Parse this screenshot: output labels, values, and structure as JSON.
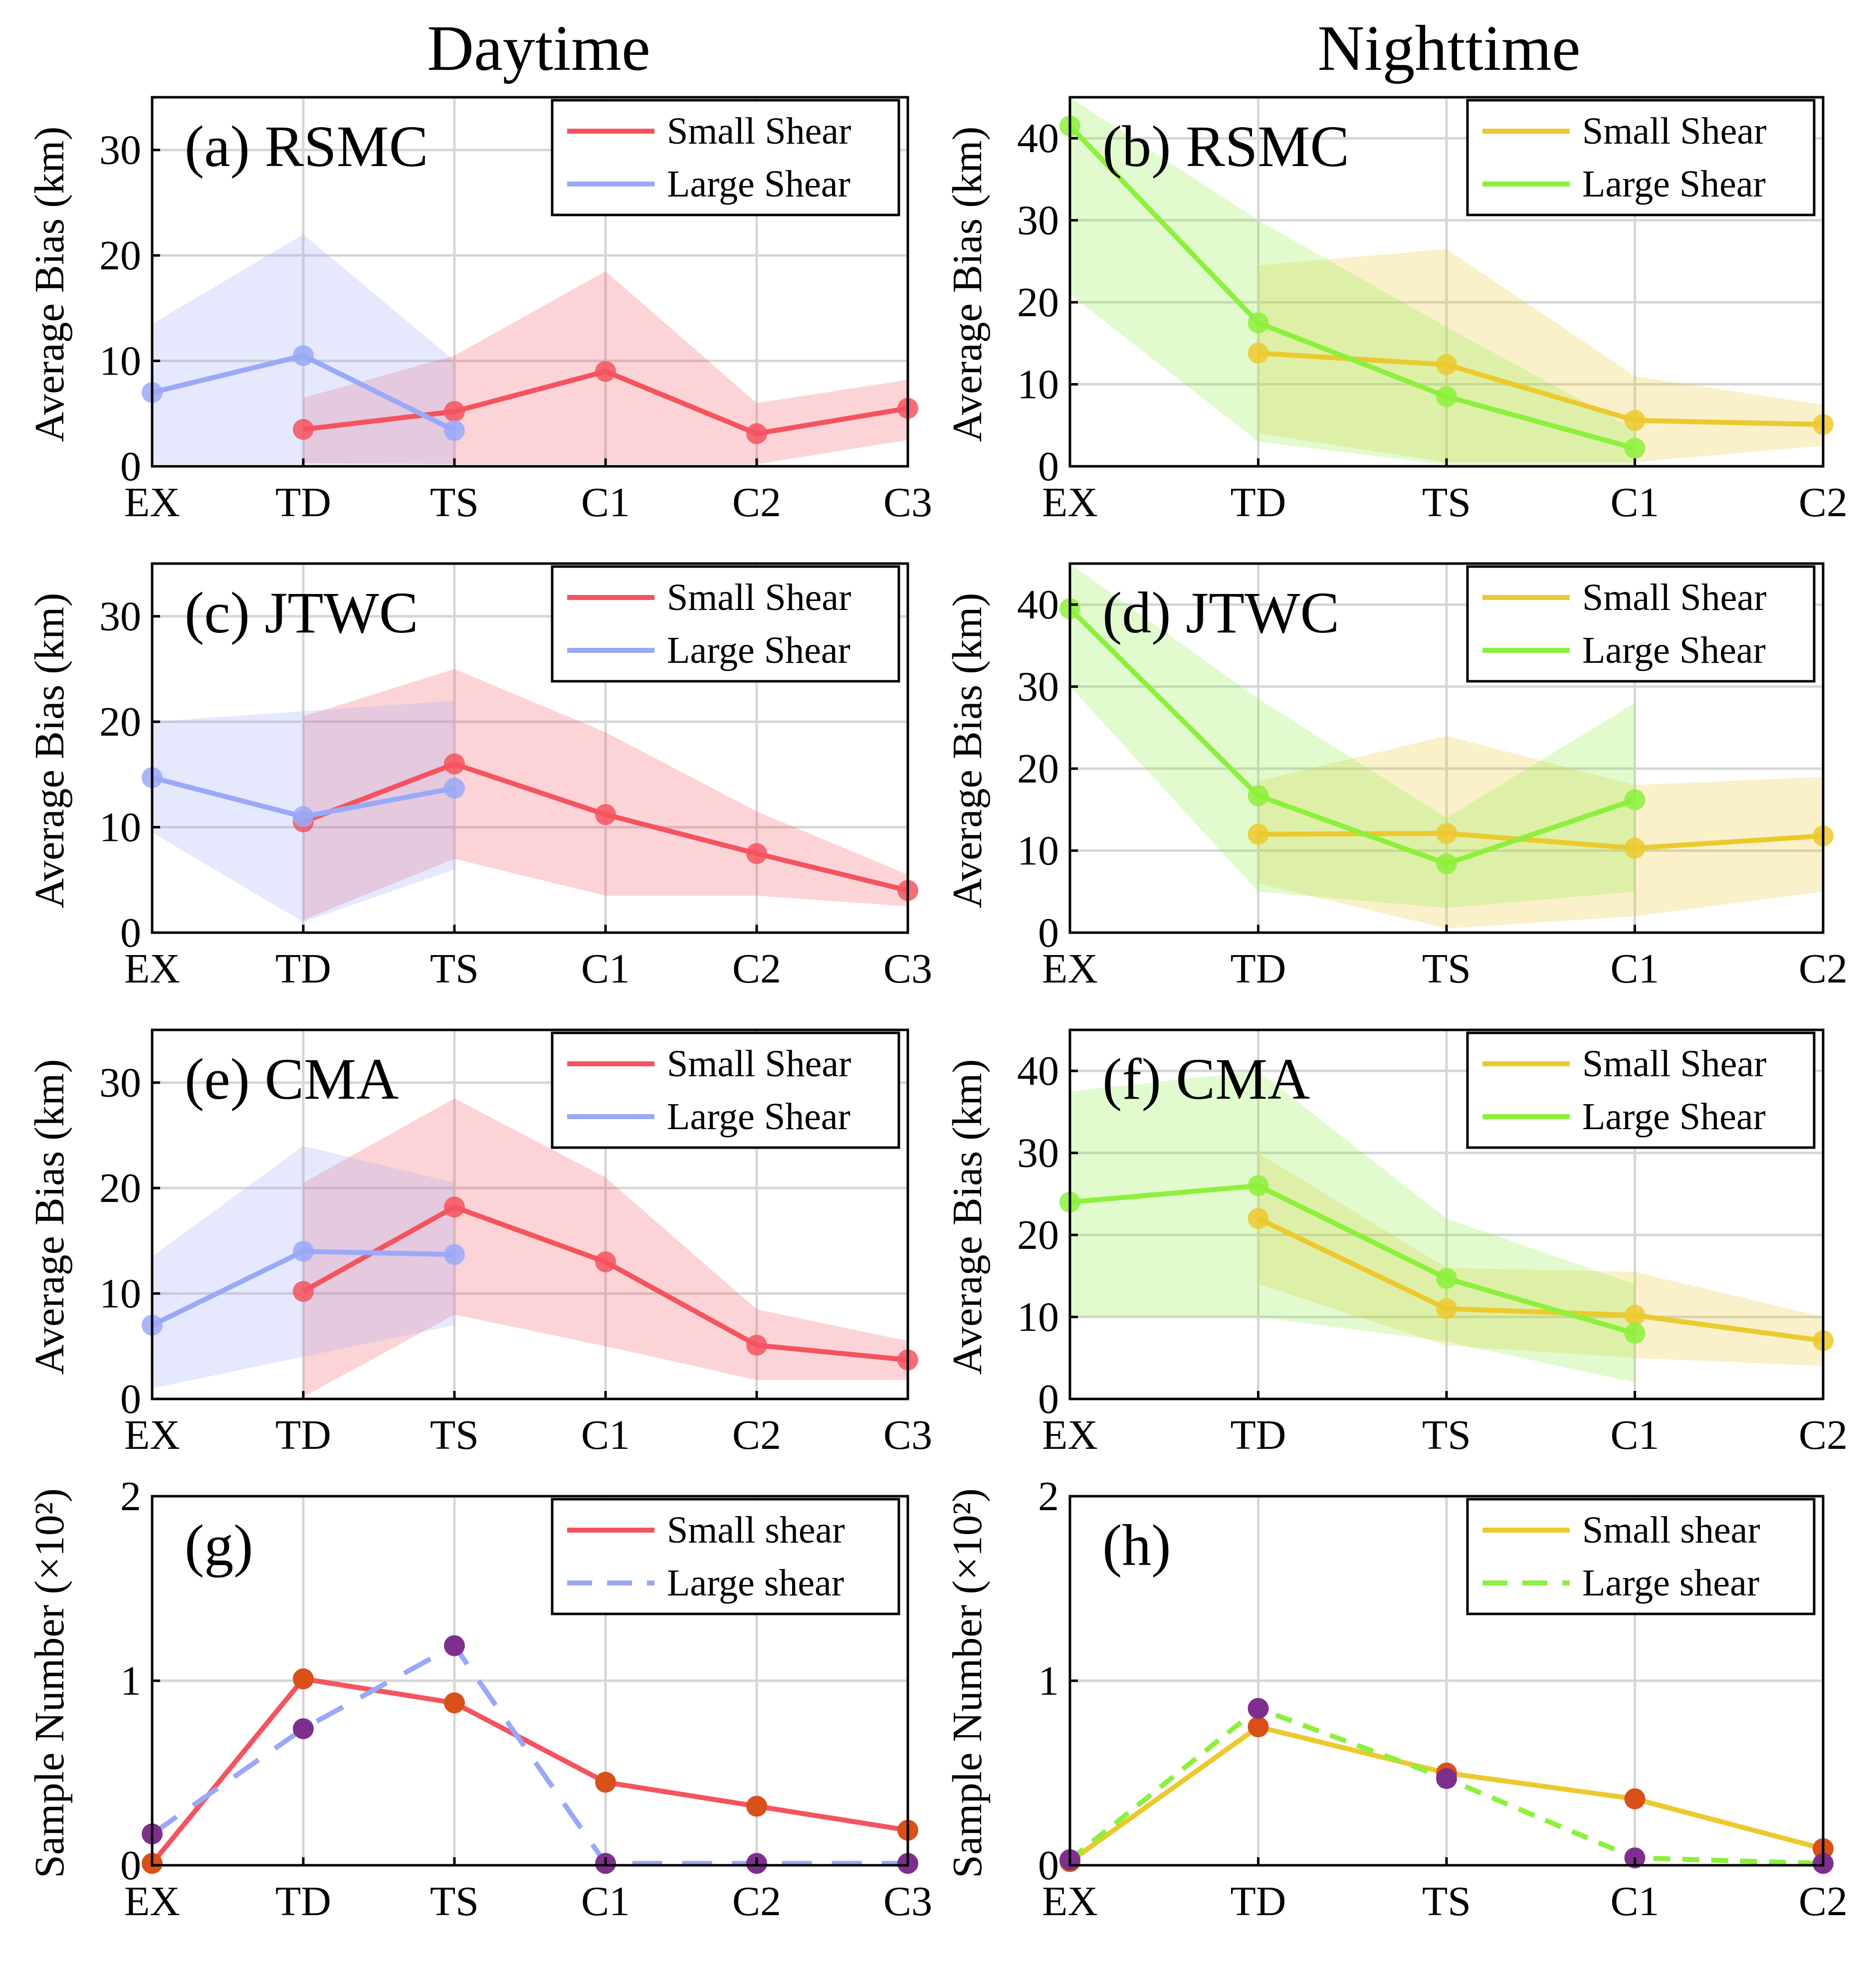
{
  "column_titles": {
    "day": "Daytime",
    "night": "Nighttime"
  },
  "colors": {
    "day_small": "#f4545e",
    "day_large": "#9aa8f8",
    "night_small": "#ecc92e",
    "night_large": "#8cf03c",
    "marker_small": "#d95019",
    "marker_large": "#7e2f8e"
  },
  "chart_data": [
    {
      "id": "a",
      "type": "line",
      "title": "(a) RSMC",
      "column": "day",
      "ylabel": "Average Bias (km)",
      "xlabel": "",
      "categories": [
        "EX",
        "TD",
        "TS",
        "C1",
        "C2",
        "C3"
      ],
      "ylim": [
        0,
        35
      ],
      "yticks": [
        0,
        10,
        20,
        30
      ],
      "grid": true,
      "legend": "top-right",
      "series": [
        {
          "name": "Small Shear",
          "values": [
            null,
            3.5,
            5.2,
            9,
            3.1,
            5.5
          ],
          "lower": [
            null,
            0.3,
            0.2,
            0.2,
            0.2,
            2.5
          ],
          "upper": [
            null,
            6.5,
            10.5,
            18.5,
            6,
            8.2
          ]
        },
        {
          "name": "Large Shear",
          "values": [
            7,
            10.5,
            3.4,
            null,
            null,
            null
          ],
          "lower": [
            0.2,
            0.2,
            0.2,
            null,
            null,
            null
          ],
          "upper": [
            13.5,
            22,
            10,
            null,
            null,
            null
          ]
        }
      ]
    },
    {
      "id": "b",
      "type": "line",
      "title": "(b) RSMC",
      "column": "night",
      "ylabel": "Average Bias (km)",
      "xlabel": "",
      "categories": [
        "EX",
        "TD",
        "TS",
        "C1",
        "C2"
      ],
      "ylim": [
        0,
        45
      ],
      "yticks": [
        0,
        10,
        20,
        30,
        40
      ],
      "grid": true,
      "legend": "top-right",
      "series": [
        {
          "name": "Small Shear",
          "values": [
            null,
            13.8,
            12.4,
            5.6,
            5.1
          ],
          "lower": [
            null,
            4,
            0.5,
            0.5,
            2.5
          ],
          "upper": [
            null,
            24.5,
            26.5,
            11,
            7.5
          ]
        },
        {
          "name": "Large Shear",
          "values": [
            41.5,
            17.5,
            8.5,
            2.2,
            null
          ],
          "lower": [
            21,
            3,
            0.2,
            0.2,
            null
          ],
          "upper": [
            45,
            30,
            17,
            4.5,
            null
          ]
        }
      ]
    },
    {
      "id": "c",
      "type": "line",
      "title": "(c) JTWC",
      "column": "day",
      "ylabel": "Average Bias (km)",
      "xlabel": "",
      "categories": [
        "EX",
        "TD",
        "TS",
        "C1",
        "C2",
        "C3"
      ],
      "ylim": [
        0,
        35
      ],
      "yticks": [
        0,
        10,
        20,
        30
      ],
      "grid": true,
      "legend": "top-right",
      "series": [
        {
          "name": "Small Shear",
          "values": [
            null,
            10.5,
            16,
            11.2,
            7.5,
            4
          ],
          "lower": [
            null,
            1.2,
            7,
            3.5,
            3.5,
            2.5
          ],
          "upper": [
            null,
            20.5,
            25,
            19,
            11.5,
            5.5
          ]
        },
        {
          "name": "Large Shear",
          "values": [
            14.7,
            11,
            13.7,
            null,
            null,
            null
          ],
          "lower": [
            9.5,
            1,
            6,
            null,
            null,
            null
          ],
          "upper": [
            20,
            21,
            22,
            null,
            null,
            null
          ]
        }
      ]
    },
    {
      "id": "d",
      "type": "line",
      "title": "(d) JTWC",
      "column": "night",
      "ylabel": "Average Bias (km)",
      "xlabel": "",
      "categories": [
        "EX",
        "TD",
        "TS",
        "C1",
        "C2"
      ],
      "ylim": [
        0,
        45
      ],
      "yticks": [
        0,
        10,
        20,
        30,
        40
      ],
      "grid": true,
      "legend": "top-right",
      "series": [
        {
          "name": "Small Shear",
          "values": [
            null,
            12,
            12.1,
            10.3,
            11.8
          ],
          "lower": [
            null,
            6,
            0.5,
            2,
            5
          ],
          "upper": [
            null,
            18.5,
            24,
            18,
            19
          ]
        },
        {
          "name": "Large Shear",
          "values": [
            39.5,
            16.7,
            8.4,
            16.2,
            null
          ],
          "lower": [
            30,
            5,
            3,
            5,
            null
          ],
          "upper": [
            45,
            28.5,
            14,
            28,
            null
          ]
        }
      ]
    },
    {
      "id": "e",
      "type": "line",
      "title": "(e) CMA",
      "column": "day",
      "ylabel": "Average Bias (km)",
      "xlabel": "",
      "categories": [
        "EX",
        "TD",
        "TS",
        "C1",
        "C2",
        "C3"
      ],
      "ylim": [
        0,
        35
      ],
      "yticks": [
        0,
        10,
        20,
        30
      ],
      "grid": true,
      "legend": "top-right",
      "series": [
        {
          "name": "Small Shear",
          "values": [
            null,
            10.2,
            18.2,
            13,
            5.1,
            3.7
          ],
          "lower": [
            null,
            0.2,
            8,
            5,
            1.8,
            1.8
          ],
          "upper": [
            null,
            20.5,
            28.5,
            21,
            8.5,
            5.5
          ]
        },
        {
          "name": "Large Shear",
          "values": [
            7,
            14,
            13.7,
            null,
            null,
            null
          ],
          "lower": [
            1,
            4,
            7,
            null,
            null,
            null
          ],
          "upper": [
            13.5,
            24,
            20.5,
            null,
            null,
            null
          ]
        }
      ]
    },
    {
      "id": "f",
      "type": "line",
      "title": "(f) CMA",
      "column": "night",
      "ylabel": "Average Bias (km)",
      "xlabel": "",
      "categories": [
        "EX",
        "TD",
        "TS",
        "C1",
        "C2"
      ],
      "ylim": [
        0,
        45
      ],
      "yticks": [
        0,
        10,
        20,
        30,
        40
      ],
      "grid": true,
      "legend": "top-right",
      "series": [
        {
          "name": "Small Shear",
          "values": [
            null,
            22,
            11,
            10.2,
            7.1
          ],
          "lower": [
            null,
            14,
            6.5,
            5,
            4
          ],
          "upper": [
            null,
            30,
            16,
            15.5,
            10
          ]
        },
        {
          "name": "Large Shear",
          "values": [
            24,
            26,
            14.7,
            8,
            null
          ],
          "lower": [
            10,
            10,
            7,
            2,
            null
          ],
          "upper": [
            37.5,
            40,
            22,
            14,
            null
          ]
        }
      ]
    },
    {
      "id": "g",
      "type": "line",
      "title": "(g)",
      "column": "day",
      "ylabel": "Sample Number (×10²)",
      "xlabel": "",
      "categories": [
        "EX",
        "TD",
        "TS",
        "C1",
        "C2",
        "C3"
      ],
      "ylim": [
        0,
        2
      ],
      "yticks": [
        0,
        1,
        2
      ],
      "grid": true,
      "legend": "top-right",
      "series": [
        {
          "name": "Small shear",
          "values": [
            0.01,
            1.01,
            0.88,
            0.45,
            0.32,
            0.19
          ]
        },
        {
          "name": "Large shear",
          "values": [
            0.17,
            0.74,
            1.19,
            0.01,
            0.01,
            0.01
          ]
        }
      ]
    },
    {
      "id": "h",
      "type": "line",
      "title": "(h)",
      "column": "night",
      "ylabel": "Sample Number (×10²)",
      "xlabel": "",
      "categories": [
        "EX",
        "TD",
        "TS",
        "C1",
        "C2"
      ],
      "ylim": [
        0,
        2
      ],
      "yticks": [
        0,
        1,
        2
      ],
      "grid": true,
      "legend": "top-right",
      "series": [
        {
          "name": "Small shear",
          "values": [
            0.02,
            0.75,
            0.5,
            0.36,
            0.09
          ]
        },
        {
          "name": "Large shear",
          "values": [
            0.03,
            0.85,
            0.47,
            0.04,
            0.01
          ]
        }
      ]
    }
  ]
}
